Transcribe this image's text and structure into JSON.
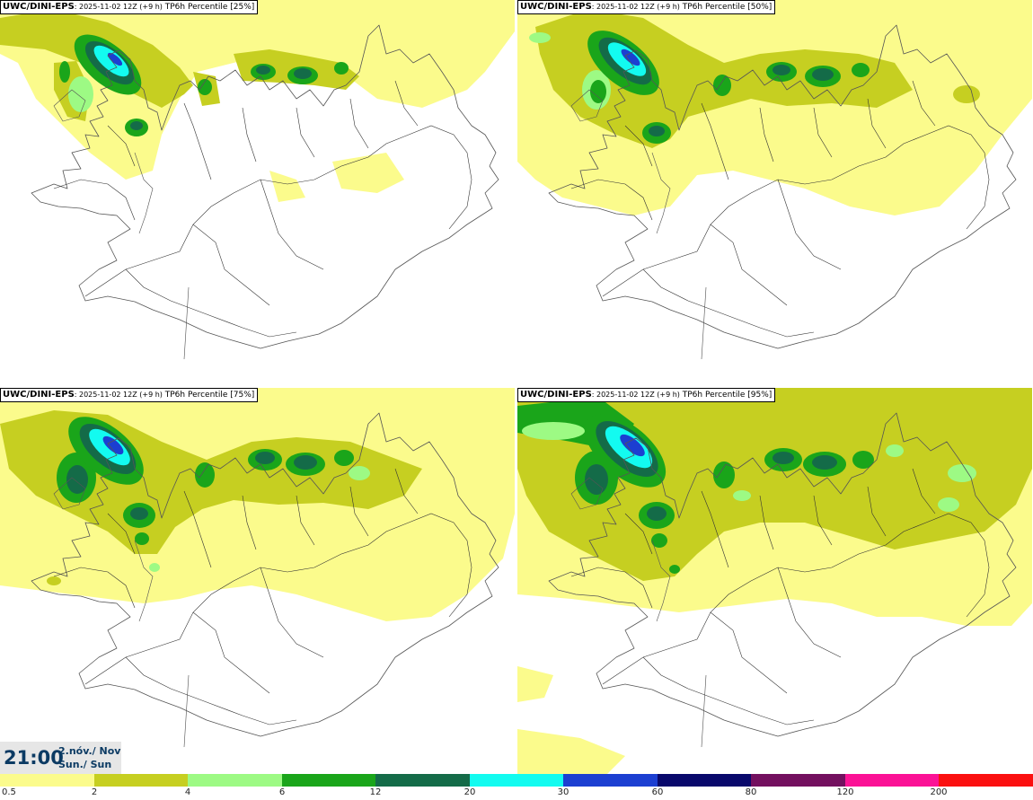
{
  "panels": [
    {
      "model": "UWC/DINI-EPS",
      "run": ": 2025-11-02 12Z (+9 h)",
      "field": " TP6h Percentile [25%]"
    },
    {
      "model": "UWC/DINI-EPS",
      "run": ": 2025-11-02 12Z (+9 h)",
      "field": " TP6h Percentile [50%]"
    },
    {
      "model": "UWC/DINI-EPS",
      "run": ": 2025-11-02 12Z (+9 h)",
      "field": " TP6h Percentile [75%]"
    },
    {
      "model": "UWC/DINI-EPS",
      "run": ": 2025-11-02 12Z (+9 h)",
      "field": " TP6h Percentile [95%]"
    }
  ],
  "valid_time": {
    "time": "21:00",
    "date_line_1": "2.nóv./ Nov",
    "date_line_2": "Sun./ Sun"
  },
  "legend": {
    "labels": [
      "0.5",
      "2",
      "4",
      "6",
      "12",
      "20",
      "30",
      "60",
      "80",
      "120",
      "200"
    ],
    "colors": [
      "#fbfb8c",
      "#c6cf21",
      "#9dfa84",
      "#1aa51a",
      "#146b48",
      "#13fbf0",
      "#1c3fd1",
      "#08086b",
      "#73105f",
      "#fb1296",
      "#fb1010"
    ]
  }
}
